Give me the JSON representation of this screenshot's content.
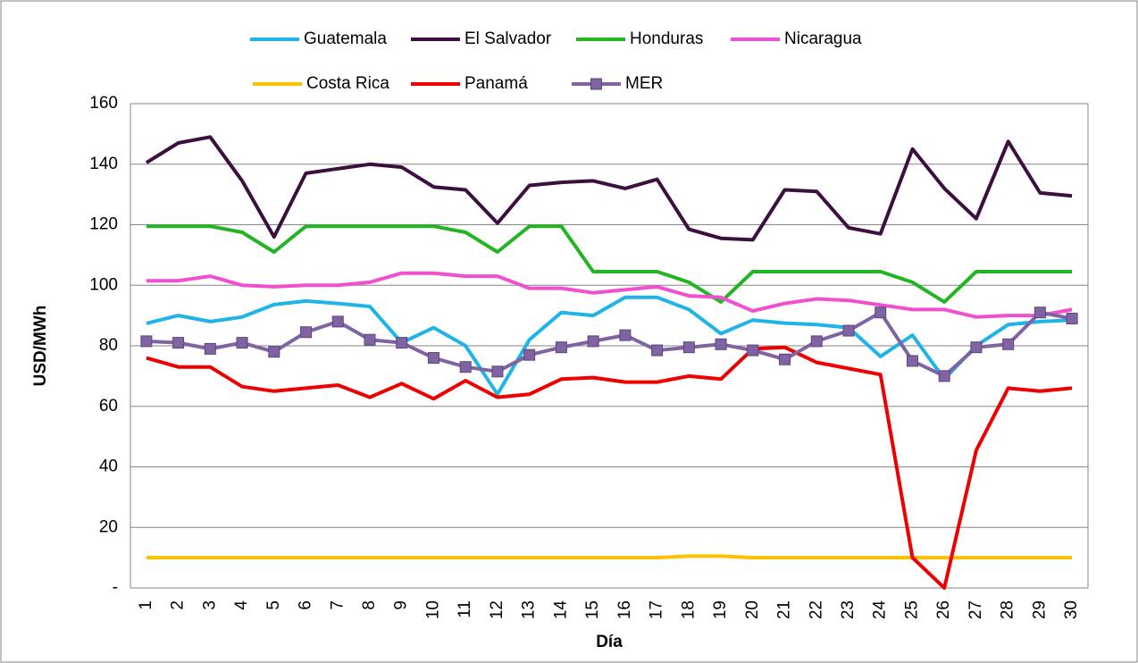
{
  "chart_data": {
    "type": "line",
    "y_label": "USD/MWh",
    "x_label": "Día",
    "categories": [
      "1",
      "2",
      "3",
      "4",
      "5",
      "6",
      "7",
      "8",
      "9",
      "10",
      "11",
      "12",
      "13",
      "14",
      "15",
      "16",
      "17",
      "18",
      "19",
      "20",
      "21",
      "22",
      "23",
      "24",
      "25",
      "26",
      "27",
      "28",
      "29",
      "30"
    ],
    "series": [
      {
        "name": "Guatemala",
        "color": "#1fb4e8",
        "values": [
          87.4,
          90,
          88,
          89.5,
          93.6,
          94.8,
          94,
          93,
          81,
          86,
          80,
          64,
          82,
          91,
          90,
          96,
          96,
          92,
          84,
          88.5,
          87.5,
          87,
          86,
          76.5,
          83.5,
          69,
          80,
          87,
          88,
          88.5
        ]
      },
      {
        "name": "El Salvador",
        "color": "#3c0f3f",
        "values": [
          140.5,
          147,
          149,
          134.5,
          116,
          137,
          138.5,
          140,
          139,
          132.5,
          131.5,
          120.5,
          133,
          134,
          134.5,
          132,
          135,
          118.5,
          115.5,
          115,
          131.5,
          131,
          119,
          117,
          145,
          132,
          122,
          147.5,
          130.5,
          129.5
        ]
      },
      {
        "name": "Honduras",
        "color": "#22b422",
        "values": [
          119.5,
          119.5,
          119.5,
          117.5,
          111,
          119.5,
          119.5,
          119.5,
          119.5,
          119.5,
          117.5,
          111,
          119.5,
          119.5,
          104.5,
          104.5,
          104.5,
          101,
          94.5,
          104.5,
          104.5,
          104.5,
          104.5,
          104.5,
          101,
          94.5,
          104.5,
          104.5,
          104.5,
          104.5
        ]
      },
      {
        "name": "Nicaragua",
        "color": "#f050d0",
        "values": [
          101.5,
          101.5,
          103,
          100,
          99.5,
          100,
          100,
          101,
          104,
          104,
          103,
          103,
          99,
          99,
          97.5,
          98.5,
          99.5,
          96.5,
          96,
          91.5,
          94,
          95.5,
          95,
          93.5,
          92,
          92,
          89.5,
          90,
          90,
          92
        ]
      },
      {
        "name": "Costa Rica",
        "color": "#ffc000",
        "values": [
          10,
          10,
          10,
          10,
          10,
          10,
          10,
          10,
          10,
          10,
          10,
          10,
          10,
          10,
          10,
          10,
          10,
          10.5,
          10.5,
          10,
          10,
          10,
          10,
          10,
          10,
          10,
          10,
          10,
          10,
          10
        ]
      },
      {
        "name": "Panamá",
        "color": "#ee0000",
        "values": [
          76,
          73,
          73,
          66.5,
          65,
          66,
          67,
          63,
          67.5,
          62.5,
          68.5,
          63,
          64,
          69,
          69.5,
          68,
          68,
          70,
          69,
          79,
          79.5,
          74.5,
          72.5,
          70.5,
          10,
          0,
          45.5,
          66,
          65,
          66
        ]
      },
      {
        "name": "MER",
        "color": "#8064a2",
        "marker": "square",
        "values": [
          81.5,
          81,
          79,
          81,
          78,
          84.5,
          88,
          82,
          81,
          76,
          73,
          71.5,
          77,
          79.5,
          81.5,
          83.5,
          78.5,
          79.5,
          80.5,
          78.5,
          75.5,
          81.5,
          85,
          91,
          75,
          70,
          79.5,
          80.5,
          91,
          89
        ]
      }
    ],
    "ylim": [
      0,
      160
    ],
    "yticks": [
      {
        "value": 0,
        "label": "-"
      },
      20,
      40,
      60,
      80,
      100,
      120,
      140,
      160
    ],
    "grid": true
  }
}
